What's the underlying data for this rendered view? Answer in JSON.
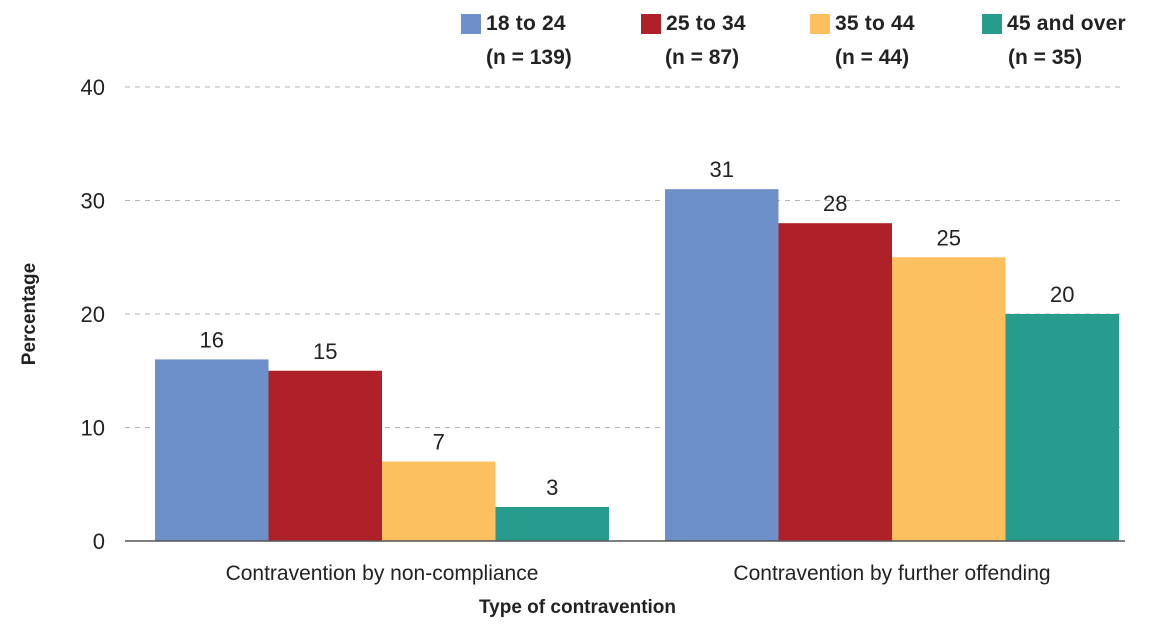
{
  "chart_data": {
    "type": "bar",
    "categories": [
      "Contravention by non-compliance",
      "Contravention by further offending"
    ],
    "series": [
      {
        "name": "18 to 24",
        "n_label": "(n = 139)",
        "color": "#6d8fca",
        "values": [
          16,
          31
        ]
      },
      {
        "name": "25 to 34",
        "n_label": "(n = 87)",
        "color": "#b02028",
        "values": [
          15,
          28
        ]
      },
      {
        "name": "35 to 44",
        "n_label": "(n = 44)",
        "color": "#fdc05f",
        "values": [
          7,
          25
        ]
      },
      {
        "name": "45 and over",
        "n_label": "(n = 35)",
        "color": "#279c8c",
        "values": [
          3,
          20
        ]
      }
    ],
    "xlabel": "Type of contravention",
    "ylabel": "Percentage",
    "ylim": [
      0,
      40
    ],
    "yticks": [
      0,
      10,
      20,
      30,
      40
    ],
    "grid": true,
    "legend_position": "top-right"
  }
}
